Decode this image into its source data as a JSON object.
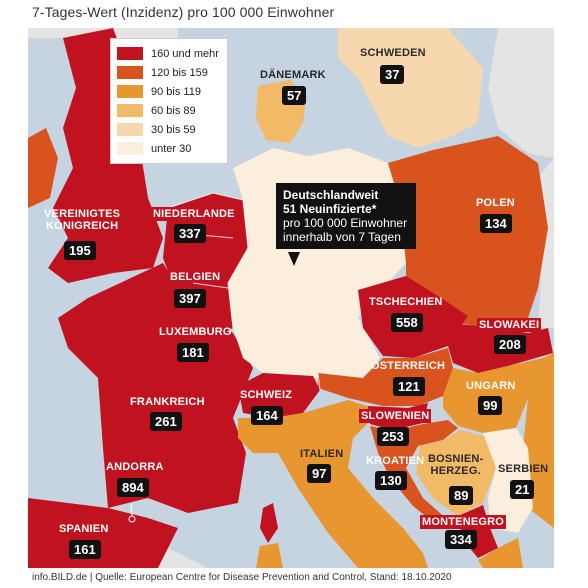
{
  "header": {
    "subtitle": "7-Tages-Wert (Inzidenz) pro 100 000 Einwohner"
  },
  "legend": [
    {
      "label": "160 und mehr",
      "color": "#c1121f"
    },
    {
      "label": "120 bis 159",
      "color": "#d9531e"
    },
    {
      "label": "90 bis 119",
      "color": "#e8962f"
    },
    {
      "label": "60 bis 89",
      "color": "#f2b967"
    },
    {
      "label": "30 bis 59",
      "color": "#f6d7ae"
    },
    {
      "label": "unter 30",
      "color": "#fbeedd"
    }
  ],
  "colors": {
    "water": "#c6d3e0",
    "unclassified": "#e4e4e4"
  },
  "callout": {
    "title": "Deutschlandweit",
    "subtitle": "51 Neuinfizierte*",
    "line1": "pro 100 000 Einwohner",
    "line2": "innerhalb von 7 Tagen"
  },
  "countries": {
    "schweden": {
      "name": "SCHWEDEN",
      "value": "37"
    },
    "daenemark": {
      "name": "DÄNEMARK",
      "value": "57"
    },
    "vereinigtes_koenigreich": {
      "name": "VEREINIGTES KÖNIGREICH",
      "line1": "VEREINIGTES",
      "line2": "KÖNIGREICH",
      "value": "195"
    },
    "niederlande": {
      "name": "NIEDERLANDE",
      "value": "337"
    },
    "belgien": {
      "name": "BELGIEN",
      "value": "397"
    },
    "luxemburg": {
      "name": "LUXEMBURG",
      "value": "181"
    },
    "frankreich": {
      "name": "FRANKREICH",
      "value": "261"
    },
    "andorra": {
      "name": "ANDORRA",
      "value": "894"
    },
    "spanien": {
      "name": "SPANIEN",
      "value": "161"
    },
    "schweiz": {
      "name": "SCHWEIZ",
      "value": "164"
    },
    "italien": {
      "name": "ITALIEN",
      "value": "97"
    },
    "polen": {
      "name": "POLEN",
      "value": "134"
    },
    "tschechien": {
      "name": "TSCHECHIEN",
      "value": "558"
    },
    "slowakei": {
      "name": "SLOWAKEI",
      "value": "208"
    },
    "oesterreich": {
      "name": "ÖSTERREICH",
      "value": "121"
    },
    "ungarn": {
      "name": "UNGARN",
      "value": "99"
    },
    "slowenien": {
      "name": "SLOWENIEN",
      "value": "253"
    },
    "kroatien": {
      "name": "KROATIEN",
      "value": "130"
    },
    "bosnien": {
      "name": "BOSNIEN-HERZEG.",
      "line1": "BOSNIEN-",
      "line2": "HERZEG.",
      "value": "89"
    },
    "serbien": {
      "name": "SERBIEN",
      "value": "21"
    },
    "montenegro": {
      "name": "MONTENEGRO",
      "value": "334"
    }
  },
  "footer": "info.BILD.de | Quelle: European Centre for Disease Prevention and Control, Stand: 18.10.2020"
}
